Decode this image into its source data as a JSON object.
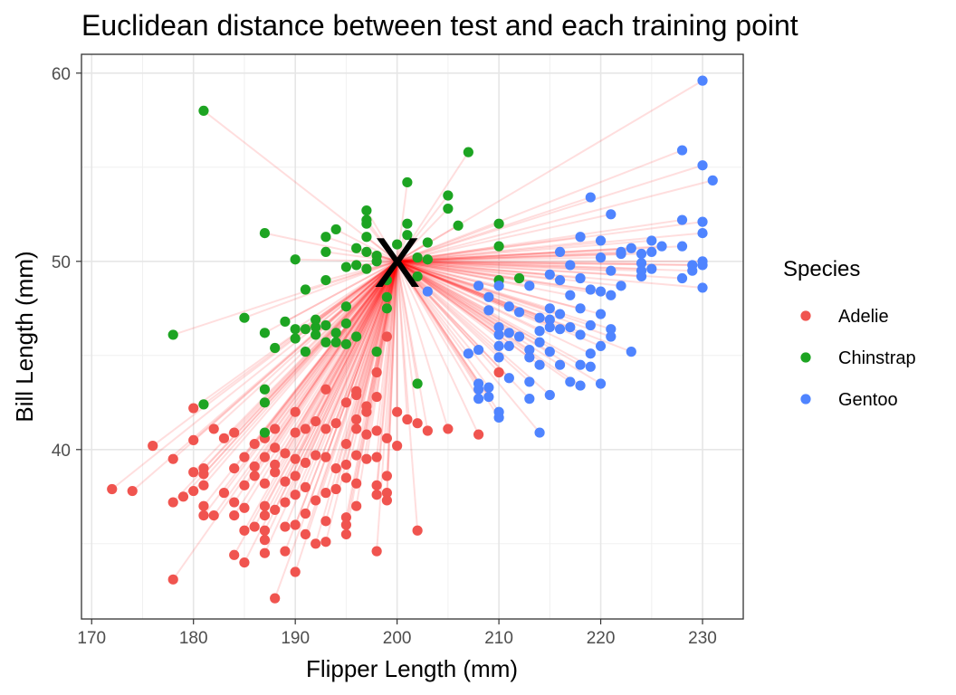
{
  "chart_data": {
    "type": "scatter",
    "title": "Euclidean distance between test and each training point",
    "xlabel": "Flipper Length (mm)",
    "ylabel": "Bill Length (mm)",
    "xlim": [
      169,
      234
    ],
    "ylim": [
      31,
      61
    ],
    "x_ticks": [
      170,
      180,
      190,
      200,
      210,
      220,
      230
    ],
    "y_ticks": [
      40,
      50,
      60
    ],
    "grid": true,
    "legend": {
      "title": "Species",
      "position": "right"
    },
    "colors": {
      "Adelie": "#F0544F",
      "Chinstrap": "#1DA422",
      "Gentoo": "#4F84FF",
      "distance_line": "#FF0000",
      "test_marker": "#000000"
    },
    "test_point": {
      "x": 200,
      "y": 50,
      "label": "X"
    },
    "series": [
      {
        "name": "Adelie",
        "points": [
          [
            172,
            37.9
          ],
          [
            174,
            37.8
          ],
          [
            176,
            40.2
          ],
          [
            178,
            39.5
          ],
          [
            178,
            37.2
          ],
          [
            178,
            33.1
          ],
          [
            179,
            37.5
          ],
          [
            180,
            42.2
          ],
          [
            180,
            40.5
          ],
          [
            180,
            38.8
          ],
          [
            180,
            37.8
          ],
          [
            181,
            39.0
          ],
          [
            181,
            38.7
          ],
          [
            181,
            38.1
          ],
          [
            181,
            37.0
          ],
          [
            181,
            36.5
          ],
          [
            182,
            41.1
          ],
          [
            182,
            36.5
          ],
          [
            183,
            40.6
          ],
          [
            183,
            37.7
          ],
          [
            184,
            40.9
          ],
          [
            184,
            39.0
          ],
          [
            184,
            37.2
          ],
          [
            184,
            36.5
          ],
          [
            184,
            34.4
          ],
          [
            185,
            39.6
          ],
          [
            185,
            38.1
          ],
          [
            185,
            36.9
          ],
          [
            185,
            35.7
          ],
          [
            185,
            34.0
          ],
          [
            186,
            40.3
          ],
          [
            186,
            39.1
          ],
          [
            186,
            38.6
          ],
          [
            186,
            35.9
          ],
          [
            187,
            40.6
          ],
          [
            187,
            39.6
          ],
          [
            187,
            38.2
          ],
          [
            187,
            37.0
          ],
          [
            187,
            36.5
          ],
          [
            187,
            35.7
          ],
          [
            187,
            35.2
          ],
          [
            187,
            34.5
          ],
          [
            188,
            41.1
          ],
          [
            188,
            40.1
          ],
          [
            188,
            39.2
          ],
          [
            188,
            38.8
          ],
          [
            188,
            36.8
          ],
          [
            188,
            32.1
          ],
          [
            189,
            39.8
          ],
          [
            189,
            38.3
          ],
          [
            189,
            37.2
          ],
          [
            189,
            35.9
          ],
          [
            189,
            34.6
          ],
          [
            190,
            42.0
          ],
          [
            190,
            40.9
          ],
          [
            190,
            39.5
          ],
          [
            190,
            38.6
          ],
          [
            190,
            37.6
          ],
          [
            190,
            36.0
          ],
          [
            190,
            33.5
          ],
          [
            191,
            41.1
          ],
          [
            191,
            39.3
          ],
          [
            191,
            38.0
          ],
          [
            191,
            36.6
          ],
          [
            191,
            35.5
          ],
          [
            192,
            41.5
          ],
          [
            192,
            39.7
          ],
          [
            192,
            37.3
          ],
          [
            192,
            35.0
          ],
          [
            193,
            43.2
          ],
          [
            193,
            41.1
          ],
          [
            193,
            39.6
          ],
          [
            193,
            37.7
          ],
          [
            193,
            36.2
          ],
          [
            193,
            35.1
          ],
          [
            194,
            41.4
          ],
          [
            194,
            39.0
          ],
          [
            194,
            37.9
          ],
          [
            195,
            42.5
          ],
          [
            195,
            40.3
          ],
          [
            195,
            39.2
          ],
          [
            195,
            38.5
          ],
          [
            195,
            36.4
          ],
          [
            195,
            36.0
          ],
          [
            195,
            35.5
          ],
          [
            196,
            43.1
          ],
          [
            196,
            42.9
          ],
          [
            196,
            41.6
          ],
          [
            196,
            41.1
          ],
          [
            196,
            39.7
          ],
          [
            196,
            38.2
          ],
          [
            196,
            37.0
          ],
          [
            197,
            42.3
          ],
          [
            197,
            42.0
          ],
          [
            197,
            40.8
          ],
          [
            197,
            39.5
          ],
          [
            198,
            44.1
          ],
          [
            198,
            42.8
          ],
          [
            198,
            41.0
          ],
          [
            198,
            39.6
          ],
          [
            198,
            38.1
          ],
          [
            198,
            37.6
          ],
          [
            198,
            34.6
          ],
          [
            199,
            46.0
          ],
          [
            199,
            40.6
          ],
          [
            199,
            38.6
          ],
          [
            199,
            37.7
          ],
          [
            199,
            37.3
          ],
          [
            200,
            42.0
          ],
          [
            200,
            40.2
          ],
          [
            201,
            41.6
          ],
          [
            202,
            41.4
          ],
          [
            202,
            35.7
          ],
          [
            203,
            41.0
          ],
          [
            205,
            41.1
          ],
          [
            208,
            40.8
          ],
          [
            210,
            44.1
          ]
        ]
      },
      {
        "name": "Chinstrap",
        "points": [
          [
            178,
            46.1
          ],
          [
            181,
            58.0
          ],
          [
            181,
            42.4
          ],
          [
            185,
            47.0
          ],
          [
            187,
            51.5
          ],
          [
            187,
            46.2
          ],
          [
            187,
            43.2
          ],
          [
            187,
            42.5
          ],
          [
            187,
            40.9
          ],
          [
            188,
            45.4
          ],
          [
            189,
            46.8
          ],
          [
            190,
            50.1
          ],
          [
            190,
            46.4
          ],
          [
            190,
            45.9
          ],
          [
            191,
            48.5
          ],
          [
            191,
            46.4
          ],
          [
            191,
            45.2
          ],
          [
            192,
            46.5
          ],
          [
            192,
            46.9
          ],
          [
            192,
            46.1
          ],
          [
            193,
            51.3
          ],
          [
            193,
            50.5
          ],
          [
            193,
            49.0
          ],
          [
            193,
            46.6
          ],
          [
            193,
            45.7
          ],
          [
            194,
            51.7
          ],
          [
            194,
            46.2
          ],
          [
            194,
            45.7
          ],
          [
            195,
            49.7
          ],
          [
            195,
            47.6
          ],
          [
            195,
            46.7
          ],
          [
            195,
            45.6
          ],
          [
            196,
            50.7
          ],
          [
            196,
            49.8
          ],
          [
            196,
            46.0
          ],
          [
            197,
            52.7
          ],
          [
            197,
            52.2
          ],
          [
            197,
            52.0
          ],
          [
            197,
            51.3
          ],
          [
            197,
            50.5
          ],
          [
            197,
            49.6
          ],
          [
            198,
            50.3
          ],
          [
            198,
            50.0
          ],
          [
            198,
            45.2
          ],
          [
            199,
            49.0
          ],
          [
            199,
            48.1
          ],
          [
            199,
            47.5
          ],
          [
            200,
            50.9
          ],
          [
            201,
            54.2
          ],
          [
            201,
            52.0
          ],
          [
            201,
            51.4
          ],
          [
            202,
            49.2
          ],
          [
            202,
            50.2
          ],
          [
            202,
            43.5
          ],
          [
            203,
            51.0
          ],
          [
            203,
            50.1
          ],
          [
            205,
            53.5
          ],
          [
            205,
            52.8
          ],
          [
            206,
            51.9
          ],
          [
            207,
            55.8
          ],
          [
            210,
            52.0
          ],
          [
            210,
            50.8
          ],
          [
            210,
            49.0
          ],
          [
            212,
            49.1
          ]
        ]
      },
      {
        "name": "Gentoo",
        "points": [
          [
            203,
            48.4
          ],
          [
            207,
            45.1
          ],
          [
            208,
            48.7
          ],
          [
            208,
            45.3
          ],
          [
            208,
            43.2
          ],
          [
            208,
            42.7
          ],
          [
            208,
            43.5
          ],
          [
            209,
            48.1
          ],
          [
            209,
            47.4
          ],
          [
            209,
            43.3
          ],
          [
            209,
            42.8
          ],
          [
            210,
            48.7
          ],
          [
            210,
            46.5
          ],
          [
            210,
            46.1
          ],
          [
            210,
            45.5
          ],
          [
            210,
            44.9
          ],
          [
            210,
            42.0
          ],
          [
            210,
            41.7
          ],
          [
            211,
            47.6
          ],
          [
            211,
            46.2
          ],
          [
            211,
            45.5
          ],
          [
            211,
            43.8
          ],
          [
            212,
            47.3
          ],
          [
            212,
            46.0
          ],
          [
            213,
            48.7
          ],
          [
            213,
            45.3
          ],
          [
            213,
            44.9
          ],
          [
            213,
            43.6
          ],
          [
            213,
            42.7
          ],
          [
            214,
            47.0
          ],
          [
            214,
            46.3
          ],
          [
            214,
            45.7
          ],
          [
            214,
            44.5
          ],
          [
            214,
            40.9
          ],
          [
            215,
            49.3
          ],
          [
            215,
            47.5
          ],
          [
            215,
            46.9
          ],
          [
            215,
            46.5
          ],
          [
            215,
            45.2
          ],
          [
            215,
            42.9
          ],
          [
            216,
            50.5
          ],
          [
            216,
            49.0
          ],
          [
            216,
            47.2
          ],
          [
            216,
            46.4
          ],
          [
            216,
            44.5
          ],
          [
            217,
            49.8
          ],
          [
            217,
            48.2
          ],
          [
            217,
            46.5
          ],
          [
            217,
            43.6
          ],
          [
            218,
            51.3
          ],
          [
            218,
            49.1
          ],
          [
            218,
            47.5
          ],
          [
            218,
            46.1
          ],
          [
            218,
            44.5
          ],
          [
            218,
            43.4
          ],
          [
            219,
            53.4
          ],
          [
            219,
            48.5
          ],
          [
            219,
            46.6
          ],
          [
            219,
            45.1
          ],
          [
            219,
            44.4
          ],
          [
            220,
            51.1
          ],
          [
            220,
            50.2
          ],
          [
            220,
            48.4
          ],
          [
            220,
            47.2
          ],
          [
            220,
            45.5
          ],
          [
            220,
            43.5
          ],
          [
            221,
            52.5
          ],
          [
            221,
            49.5
          ],
          [
            221,
            48.2
          ],
          [
            221,
            46.4
          ],
          [
            221,
            46.0
          ],
          [
            222,
            50.4
          ],
          [
            222,
            50.5
          ],
          [
            222,
            48.7
          ],
          [
            223,
            50.7
          ],
          [
            223,
            45.2
          ],
          [
            224,
            49.9
          ],
          [
            224,
            50.4
          ],
          [
            224,
            49.5
          ],
          [
            224,
            49.2
          ],
          [
            225,
            51.1
          ],
          [
            225,
            50.5
          ],
          [
            225,
            49.6
          ],
          [
            226,
            50.8
          ],
          [
            228,
            55.9
          ],
          [
            228,
            52.2
          ],
          [
            228,
            50.8
          ],
          [
            228,
            49.1
          ],
          [
            229,
            49.8
          ],
          [
            229,
            49.5
          ],
          [
            230,
            59.6
          ],
          [
            230,
            55.1
          ],
          [
            230,
            52.1
          ],
          [
            230,
            51.5
          ],
          [
            230,
            50.0
          ],
          [
            230,
            49.8
          ],
          [
            230,
            48.6
          ],
          [
            231,
            54.3
          ]
        ]
      }
    ]
  }
}
